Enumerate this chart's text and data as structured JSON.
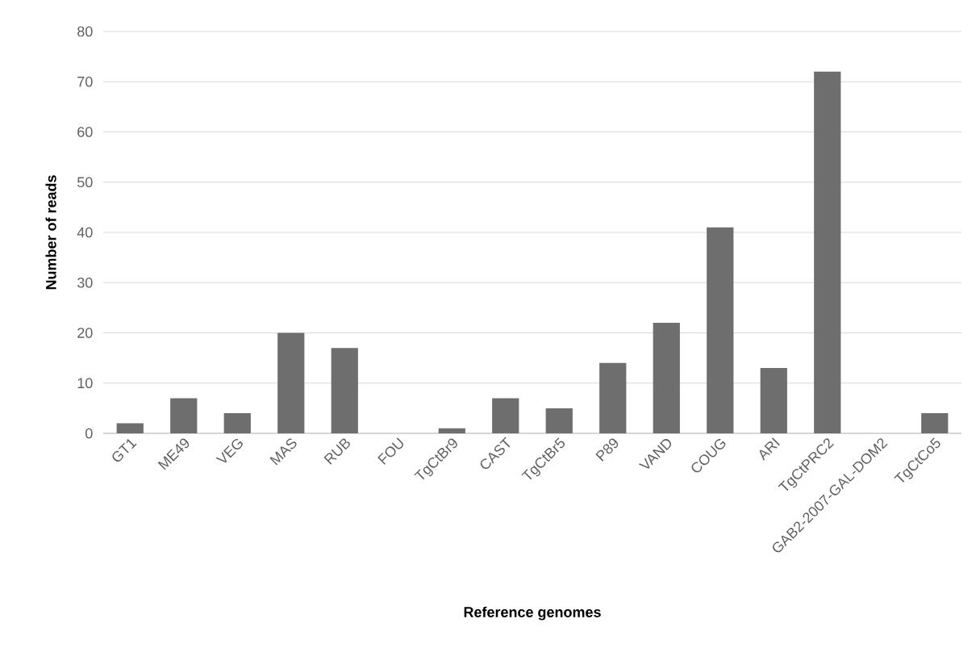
{
  "chart_data": {
    "type": "bar",
    "xlabel": "Reference genomes",
    "ylabel": "Number of reads",
    "categories": [
      "GT1",
      "ME49",
      "VEG",
      "MAS",
      "RUB",
      "FOU",
      "TgCtBr9",
      "CAST",
      "TgCtBr5",
      "P89",
      "VAND",
      "COUG",
      "ARI",
      "TgCtPRC2",
      "GAB2-2007-GAL-DOM2",
      "TgCtCo5"
    ],
    "values": [
      2,
      7,
      4,
      20,
      17,
      0,
      1,
      7,
      5,
      14,
      22,
      41,
      13,
      72,
      0,
      4
    ],
    "color": "#6e6e6e",
    "ylim": [
      0,
      80
    ],
    "yticks": [
      0,
      10,
      20,
      30,
      40,
      50,
      60,
      70,
      80
    ],
    "grid": "y"
  }
}
